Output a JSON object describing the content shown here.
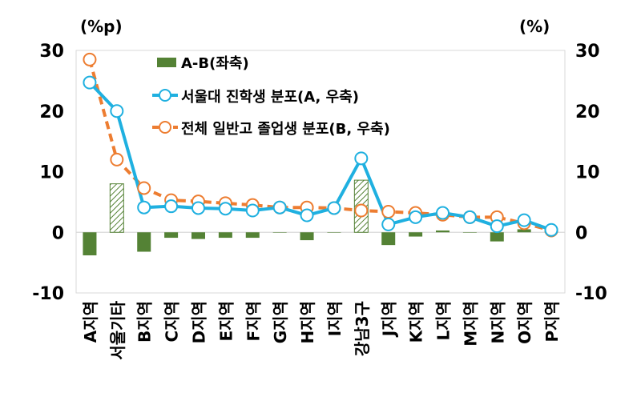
{
  "chart_data": {
    "type": "bar+line",
    "left_unit": "(%p)",
    "right_unit": "(%)",
    "categories": [
      "A지역",
      "서울기타",
      "B지역",
      "C지역",
      "D지역",
      "E지역",
      "F지역",
      "G지역",
      "H지역",
      "I지역",
      "강남3구",
      "J지역",
      "K지역",
      "L지역",
      "M지역",
      "N지역",
      "O지역",
      "P지역"
    ],
    "left_axis": {
      "ylim": [
        -10,
        30
      ],
      "ticks": [
        "30",
        "20",
        "10",
        "0",
        "-10"
      ]
    },
    "right_axis": {
      "ylim": [
        -10,
        30
      ],
      "ticks": [
        "30",
        "20",
        "10",
        "0",
        "-10"
      ]
    },
    "grid": false,
    "legend_position": "top-left",
    "series": [
      {
        "name": "A-B(좌축)",
        "kind": "bar",
        "axis": "left",
        "color": "#548235",
        "hatched_categories": [
          "서울기타",
          "강남3구"
        ],
        "values": [
          -3.8,
          8.0,
          -3.2,
          -0.9,
          -1.1,
          -0.9,
          -0.9,
          0.0,
          -1.3,
          0.0,
          8.6,
          -2.1,
          -0.7,
          0.3,
          0.0,
          -1.5,
          0.5,
          0.1
        ]
      },
      {
        "name": "서울대 진학생 분포(A, 우축)",
        "kind": "line",
        "axis": "right",
        "color": "#1fb0e0",
        "values": [
          24.7,
          20.0,
          4.1,
          4.3,
          4.0,
          3.9,
          3.6,
          4.1,
          2.8,
          4.0,
          12.2,
          1.3,
          2.5,
          3.2,
          2.5,
          1.0,
          2.0,
          0.4
        ]
      },
      {
        "name": "전체 일반고 졸업생 분포(B, 우축)",
        "kind": "line-dashed",
        "axis": "right",
        "color": "#ed7d31",
        "values": [
          28.5,
          12.0,
          7.3,
          5.3,
          5.1,
          4.8,
          4.5,
          4.1,
          4.1,
          4.0,
          3.6,
          3.4,
          3.2,
          2.9,
          2.5,
          2.5,
          1.5,
          0.3
        ]
      }
    ]
  }
}
